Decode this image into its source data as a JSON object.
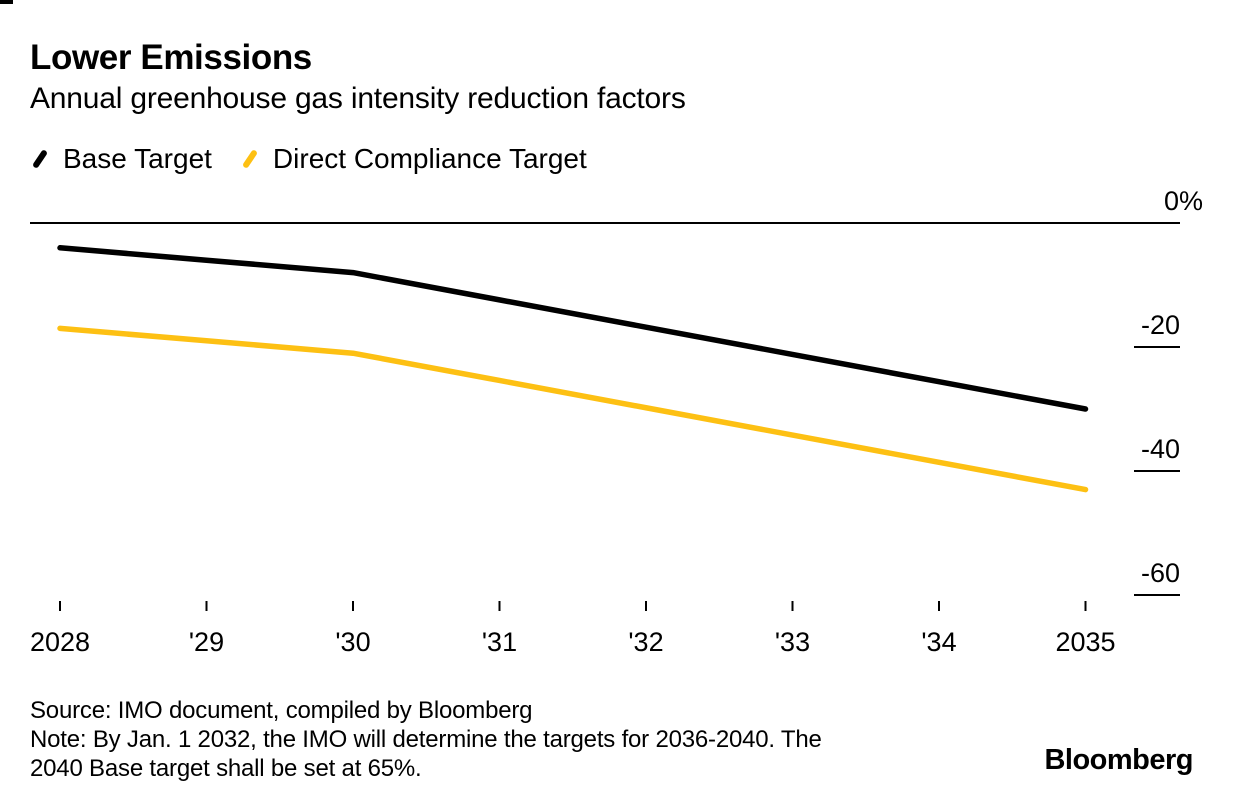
{
  "chart_data": {
    "type": "line",
    "title": "Lower Emissions",
    "subtitle": "Annual greenhouse gas intensity reduction factors",
    "xlabel": "",
    "ylabel": "",
    "unit": "%",
    "x": [
      2028,
      2029,
      2030,
      2031,
      2032,
      2033,
      2034,
      2035
    ],
    "x_tick_labels": [
      "2028",
      "'29",
      "'30",
      "'31",
      "'32",
      "'33",
      "'34",
      "2035"
    ],
    "series": [
      {
        "name": "Base Target",
        "color": "#000000",
        "values": [
          -4,
          -6,
          -8,
          -12.4,
          -16.8,
          -21.2,
          -25.6,
          -30
        ]
      },
      {
        "name": "Direct Compliance Target",
        "color": "#FDC013",
        "values": [
          -17,
          -19,
          -21,
          -25.4,
          -29.8,
          -34.2,
          -38.6,
          -43
        ]
      }
    ],
    "y_ticks": [
      {
        "value": 0,
        "label": "0%"
      },
      {
        "value": -20,
        "label": "-20"
      },
      {
        "value": -40,
        "label": "-40"
      },
      {
        "value": -60,
        "label": "-60"
      }
    ],
    "ylim": [
      -65,
      0
    ],
    "grid": false,
    "zero_baseline": true,
    "legend_position": "top-left"
  },
  "footer": {
    "source": "Source: IMO document, compiled by Bloomberg",
    "note_lines": [
      "Note: By Jan. 1 2032, the IMO will determine the targets for 2036-2040. The",
      "2040 Base target shall be set at 65%."
    ],
    "brand": "Bloomberg"
  }
}
